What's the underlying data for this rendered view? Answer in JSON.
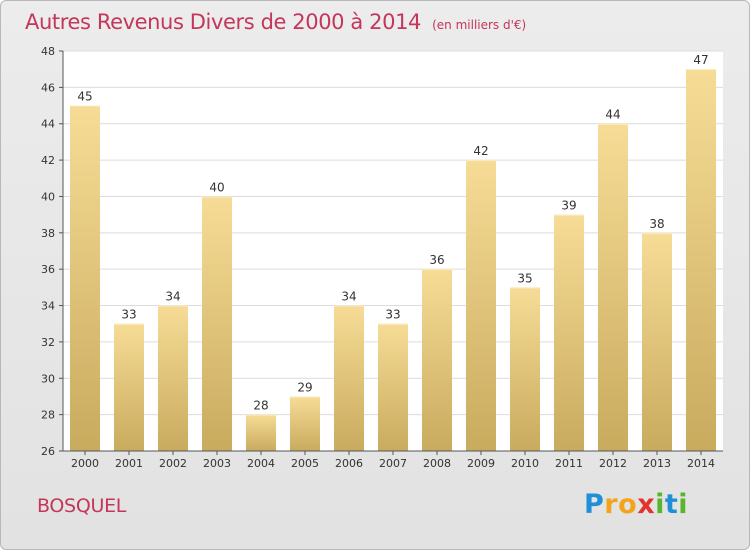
{
  "title": "Autres Revenus Divers de 2000 à 2014",
  "subtitle": "(en milliers d'€)",
  "footer": {
    "place": "BOSQUEL"
  },
  "logo": {
    "letters": [
      "P",
      "r",
      "o",
      "x",
      "i",
      "t",
      "i"
    ],
    "colors": [
      "#1f8fd6",
      "#f2a51a",
      "#f2a51a",
      "#e2342d",
      "#5ab52e",
      "#1f8fd6",
      "#5ab52e"
    ]
  },
  "chart_data": {
    "type": "bar",
    "categories": [
      "2000",
      "2001",
      "2002",
      "2003",
      "2004",
      "2005",
      "2006",
      "2007",
      "2008",
      "2009",
      "2010",
      "2011",
      "2012",
      "2013",
      "2014"
    ],
    "values": [
      45,
      33,
      34,
      40,
      28,
      29,
      34,
      33,
      36,
      42,
      35,
      39,
      44,
      38,
      47
    ],
    "title": "Autres Revenus Divers de 2000 à 2014",
    "subtitle": "(en milliers d'€)",
    "xlabel": "",
    "ylabel": "",
    "ylim": [
      26,
      48
    ],
    "yticks": [
      26,
      28,
      30,
      32,
      34,
      36,
      38,
      40,
      42,
      44,
      46,
      48
    ],
    "grid": true,
    "bar_color": "#e6c77e"
  }
}
